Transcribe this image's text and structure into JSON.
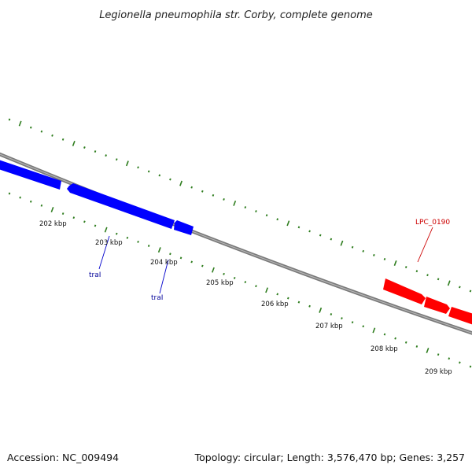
{
  "title": "Legionella pneumophila str. Corby, complete genome",
  "footer": {
    "accession": "Accession: NC_009494",
    "summary": "Topology: circular; Length: 3,576,470 bp; Genes: 3,257"
  },
  "colors": {
    "backbone": "#7a7a7a",
    "tick": "#2e7d1e",
    "reverse_gene": "#0000ff",
    "forward_gene": "#ff0000",
    "reverse_label": "#000099",
    "forward_label": "#cc0000"
  },
  "scale_labels": [
    "202 kbp",
    "203 kbp",
    "204 kbp",
    "205 kbp",
    "206 kbp",
    "207 kbp",
    "208 kbp",
    "209 kbp"
  ],
  "genes": [
    {
      "name": "traI",
      "strand": "reverse"
    },
    {
      "name": "traI",
      "strand": "reverse"
    },
    {
      "name": "LPC_0190",
      "strand": "forward"
    }
  ]
}
